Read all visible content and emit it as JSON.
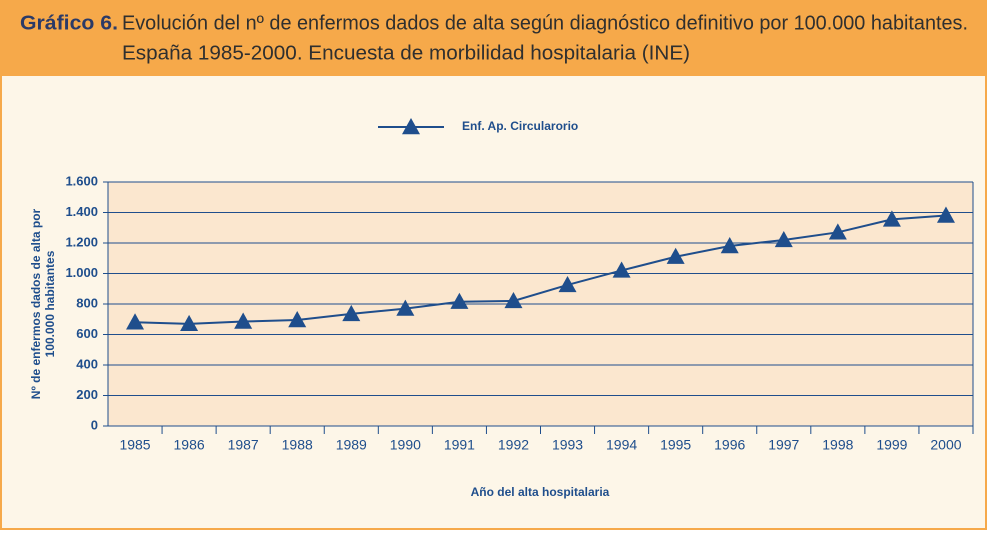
{
  "chart_data": {
    "type": "line",
    "label": "Gráfico 6.",
    "title": "Evolución del nº de enfermos dados de alta según diagnóstico definitivo por 100.000 habitantes.",
    "subtitle": "España 1985-2000. Encuesta de morbilidad hospitalaria (INE)",
    "categories": [
      "1985",
      "1986",
      "1987",
      "1988",
      "1989",
      "1990",
      "1991",
      "1992",
      "1993",
      "1994",
      "1995",
      "1996",
      "1997",
      "1998",
      "1999",
      "2000"
    ],
    "series": [
      {
        "name": "Enf. Ap. Circularorio",
        "color": "#1f4e8c",
        "values": [
          680,
          670,
          685,
          695,
          735,
          770,
          815,
          820,
          925,
          1020,
          1110,
          1180,
          1220,
          1270,
          1355,
          1380
        ]
      }
    ],
    "ylim": [
      0,
      1600
    ],
    "yticks": [
      0,
      200,
      400,
      600,
      800,
      {
        "value": 1000,
        "label": "1.000"
      },
      {
        "value": 1200,
        "label": "1.200"
      },
      {
        "value": 1400,
        "label": "1.400"
      },
      {
        "value": 1600,
        "label": "1.600"
      }
    ],
    "ylabel": [
      "Nº de enfermos dados de alta por",
      "100.000 habitantes"
    ],
    "xlabel": "Año del alta hospitalaria",
    "grid": true
  }
}
